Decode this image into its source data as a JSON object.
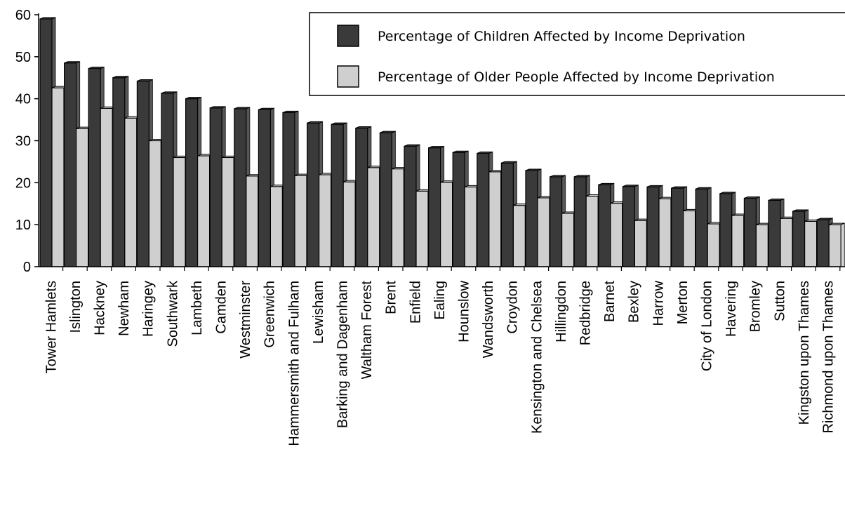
{
  "chart_data": {
    "type": "bar",
    "title": "",
    "xlabel": "",
    "ylabel": "",
    "ylim": [
      0,
      60
    ],
    "yticks": [
      0,
      10,
      20,
      30,
      40,
      50,
      60
    ],
    "grid": false,
    "legend_position": "top-right",
    "categories": [
      "Tower Hamlets",
      "Islington",
      "Hackney",
      "Newham",
      "Haringey",
      "Southwark",
      "Lambeth",
      "Camden",
      "Westminster",
      "Greenwich",
      "Hammersmith and Fulham",
      "Lewisham",
      "Barking and Dagenham",
      "Waltham Forest",
      "Brent",
      "Enfield",
      "Ealing",
      "Hounslow",
      "Wandsworth",
      "Croydon",
      "Kensington and Chelsea",
      "Hillingdon",
      "Redbridge",
      "Barnet",
      "Bexley",
      "Harrow",
      "Merton",
      "City of London",
      "Havering",
      "Bromley",
      "Sutton",
      "Kingston upon Thames",
      "Richmond upon Thames"
    ],
    "series": [
      {
        "name": "Percentage of Children Affected by Income Deprivation",
        "color": "#3a3a3a",
        "values": [
          59,
          48.5,
          47.2,
          45,
          44.2,
          41.3,
          40,
          37.8,
          37.6,
          37.4,
          36.7,
          34.2,
          33.9,
          33,
          31.9,
          28.7,
          28.3,
          27.2,
          27,
          24.7,
          22.9,
          21.4,
          21.4,
          19.5,
          19.1,
          19,
          18.7,
          18.5,
          17.4,
          16.3,
          15.8,
          13.2,
          11.2
        ]
      },
      {
        "name": "Percentage of Older People Affected by Income Deprivation",
        "color": "#cfcfcf",
        "values": [
          42.6,
          32.9,
          37.7,
          35.4,
          30,
          26,
          26.4,
          26,
          21.6,
          19.1,
          21.7,
          21.9,
          20.2,
          23.6,
          23.3,
          18,
          20.1,
          19,
          22.6,
          14.6,
          16.4,
          12.7,
          16.8,
          15.1,
          11,
          16.2,
          13.3,
          10.2,
          12.2,
          10,
          11.5,
          10.8,
          10
        ]
      }
    ]
  }
}
